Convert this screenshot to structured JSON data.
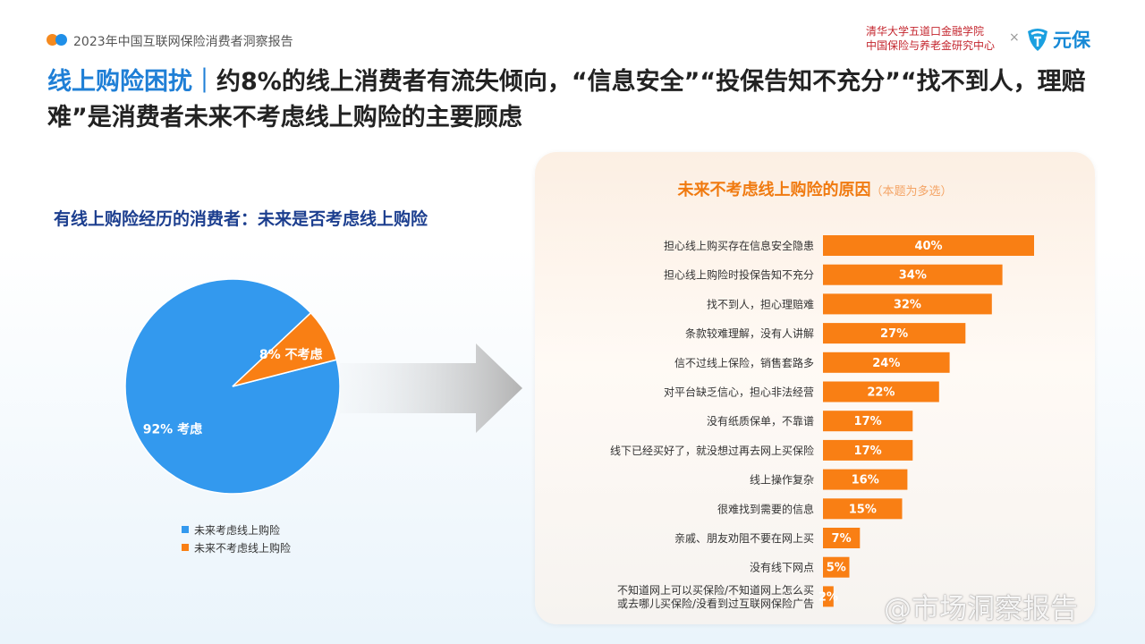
{
  "header": {
    "report_title": "2023年中国互联网保险消费者洞察报告",
    "org_line1": "清华大学五道口金融学院",
    "org_line2": "中国保险与养老金研究中心",
    "times_sign": "×",
    "brand_name": "元保",
    "brand_icon": "yuanbao-logo-icon"
  },
  "headline": {
    "highlight": "线上购险困扰｜",
    "text": "约8%的线上消费者有流失倾向，“信息安全”“投保告知不充分”“找不到人，理赔难”是消费者未来不考虑线上购险的主要顾虑"
  },
  "watermark": "@市场洞察报告",
  "chart_data": [
    {
      "type": "pie",
      "title": "有线上购险经历的消费者：未来是否考虑线上购险",
      "slices": [
        {
          "legend": "未来考虑线上购险",
          "label": "92% 考虑",
          "value": 92,
          "color": "#3399ee"
        },
        {
          "legend": "未来不考虑线上购险",
          "label": "8% 不考虑",
          "value": 8,
          "color": "#f97f14"
        }
      ]
    },
    {
      "type": "bar",
      "orientation": "horizontal",
      "title": "未来不考虑线上购险的原因",
      "subtitle": "（本题为多选）",
      "bar_color": "#f97f14",
      "categories": [
        "担心线上购买存在信息安全隐患",
        "担心线上购险时投保告知不充分",
        "找不到人，担心理赔难",
        "条款较难理解，没有人讲解",
        "信不过线上保险，销售套路多",
        "对平台缺乏信心，担心非法经营",
        "没有纸质保单，不靠谱",
        "线下已经买好了，就没想过再去网上买保险",
        "线上操作复杂",
        "很难找到需要的信息",
        "亲戚、朋友劝阻不要在网上买",
        "没有线下网点",
        "不知道网上可以买保险/不知道网上怎么买或去哪儿买保险/没看到过互联网保险广告"
      ],
      "category_lines": [
        [
          "担心线上购买存在信息安全隐患"
        ],
        [
          "担心线上购险时投保告知不充分"
        ],
        [
          "找不到人，担心理赔难"
        ],
        [
          "条款较难理解，没有人讲解"
        ],
        [
          "信不过线上保险，销售套路多"
        ],
        [
          "对平台缺乏信心，担心非法经营"
        ],
        [
          "没有纸质保单，不靠谱"
        ],
        [
          "线下已经买好了，就没想过再去网上买保险"
        ],
        [
          "线上操作复杂"
        ],
        [
          "很难找到需要的信息"
        ],
        [
          "亲戚、朋友劝阻不要在网上买"
        ],
        [
          "没有线下网点"
        ],
        [
          "不知道网上可以买保险/不知道网上怎么买",
          "或去哪儿买保险/没看到过互联网保险广告"
        ]
      ],
      "values": [
        40,
        34,
        32,
        27,
        24,
        22,
        17,
        17,
        16,
        15,
        7,
        5,
        2
      ],
      "value_labels": [
        "40%",
        "34%",
        "32%",
        "27%",
        "24%",
        "22%",
        "17%",
        "17%",
        "16%",
        "15%",
        "7%",
        "5%",
        "2%"
      ],
      "xlim": [
        0,
        40
      ]
    }
  ]
}
